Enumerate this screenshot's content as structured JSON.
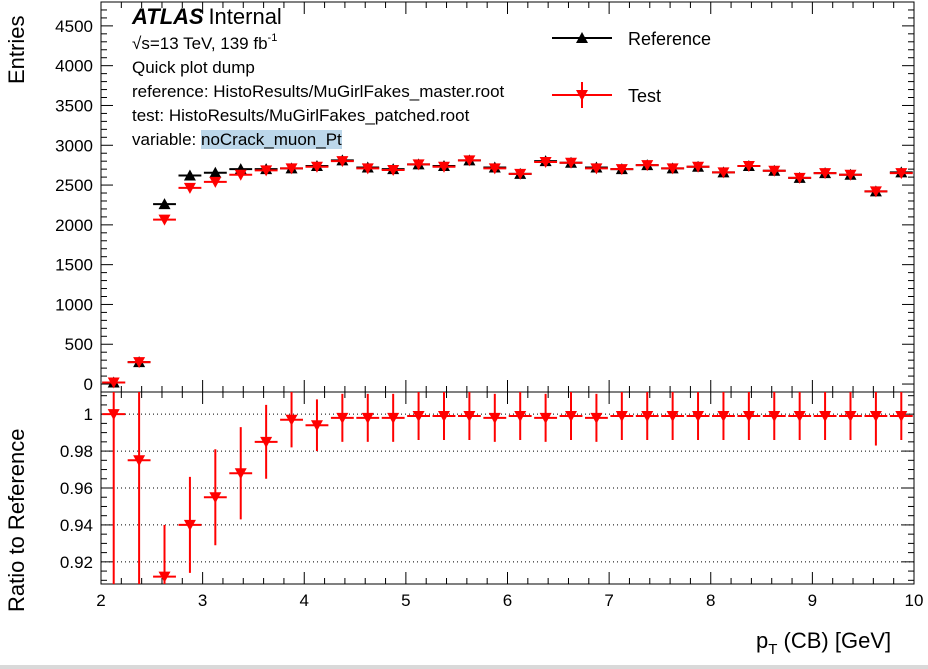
{
  "header": {
    "atlas": "ATLAS",
    "internal": "Internal",
    "energy": "√s=13 TeV, 139 fb",
    "energy_sup": "-1",
    "line3": "Quick plot dump",
    "reference_line": "reference:  HistoResults/MuGirlFakes_master.root",
    "test_line": "test: HistoResults/MuGirlFakes_patched.root",
    "variable_label": "variable: ",
    "variable_value": "noCrack_muon_Pt"
  },
  "legend": {
    "reference": "Reference",
    "test": "Test"
  },
  "axes": {
    "top_ylabel": "Entries",
    "bottom_ylabel": "Ratio to Reference",
    "xlabel_main": "p",
    "xlabel_sub": "T",
    "xlabel_rest": " (CB) [GeV]"
  },
  "colors": {
    "reference": "#000000",
    "test": "#ff0000",
    "grid": "#000000"
  },
  "chart_data": [
    {
      "type": "scatter",
      "panel": "top",
      "x": [
        2.125,
        2.375,
        2.625,
        2.875,
        3.125,
        3.375,
        3.625,
        3.875,
        4.125,
        4.375,
        4.625,
        4.875,
        5.125,
        5.375,
        5.625,
        5.875,
        6.125,
        6.375,
        6.625,
        6.875,
        7.125,
        7.375,
        7.625,
        7.875,
        8.125,
        8.375,
        8.625,
        8.875,
        9.125,
        9.375,
        9.625,
        9.875
      ],
      "xlim": [
        2,
        10
      ],
      "ylim": [
        -100,
        4800
      ],
      "yticks": [
        0,
        500,
        1000,
        1500,
        2000,
        2500,
        3000,
        3500,
        4000,
        4500
      ],
      "xticks": [
        2,
        3,
        4,
        5,
        6,
        7,
        8,
        9,
        10
      ],
      "ylabel": "Entries",
      "series": [
        {
          "name": "Reference",
          "marker": "triangle-up",
          "values": [
            20,
            275,
            2260,
            2620,
            2655,
            2700,
            2700,
            2710,
            2740,
            2810,
            2720,
            2700,
            2760,
            2740,
            2810,
            2720,
            2640,
            2800,
            2780,
            2720,
            2700,
            2750,
            2710,
            2730,
            2660,
            2740,
            2680,
            2590,
            2650,
            2630,
            2420,
            2660
          ]
        },
        {
          "name": "Test",
          "marker": "triangle-down",
          "values": [
            20,
            275,
            2065,
            2465,
            2540,
            2630,
            2685,
            2710,
            2730,
            2800,
            2710,
            2690,
            2760,
            2730,
            2810,
            2710,
            2640,
            2790,
            2780,
            2710,
            2700,
            2750,
            2710,
            2730,
            2660,
            2740,
            2680,
            2590,
            2650,
            2630,
            2420,
            2650
          ]
        }
      ]
    },
    {
      "type": "scatter",
      "panel": "bottom",
      "x": [
        2.125,
        2.375,
        2.625,
        2.875,
        3.125,
        3.375,
        3.625,
        3.875,
        4.125,
        4.375,
        4.625,
        4.875,
        5.125,
        5.375,
        5.625,
        5.875,
        6.125,
        6.375,
        6.625,
        6.875,
        7.125,
        7.375,
        7.625,
        7.875,
        8.125,
        8.375,
        8.625,
        8.875,
        9.125,
        9.375,
        9.625,
        9.875
      ],
      "xlim": [
        2,
        10
      ],
      "ylim": [
        0.908,
        1.012
      ],
      "yticks": [
        0.92,
        0.94,
        0.96,
        0.98,
        1
      ],
      "ytick_labels": [
        "0.92",
        "0.94",
        "0.96",
        "0.98",
        "1"
      ],
      "xticks": [
        2,
        3,
        4,
        5,
        6,
        7,
        8,
        9,
        10
      ],
      "xtick_labels": [
        "2",
        "3",
        "4",
        "5",
        "6",
        "7",
        "8",
        "9",
        "10"
      ],
      "gridlines_y": [
        0.92,
        0.94,
        0.96,
        0.98,
        1
      ],
      "ylabel": "Ratio to Reference",
      "series": [
        {
          "name": "Test",
          "marker": "triangle-down",
          "values": [
            1.0,
            0.975,
            0.912,
            0.94,
            0.955,
            0.968,
            0.985,
            0.997,
            0.994,
            0.998,
            0.998,
            0.998,
            0.999,
            0.999,
            0.999,
            0.998,
            0.999,
            0.998,
            0.999,
            0.998,
            0.999,
            0.999,
            0.999,
            0.999,
            0.999,
            0.999,
            0.999,
            0.999,
            0.999,
            0.999,
            0.999,
            0.999
          ],
          "err": [
            0.12,
            0.07,
            0.028,
            0.026,
            0.026,
            0.025,
            0.02,
            0.015,
            0.014,
            0.013,
            0.013,
            0.013,
            0.013,
            0.013,
            0.013,
            0.013,
            0.013,
            0.013,
            0.013,
            0.013,
            0.013,
            0.013,
            0.013,
            0.013,
            0.013,
            0.013,
            0.013,
            0.013,
            0.013,
            0.013,
            0.016,
            0.013
          ]
        }
      ]
    }
  ]
}
